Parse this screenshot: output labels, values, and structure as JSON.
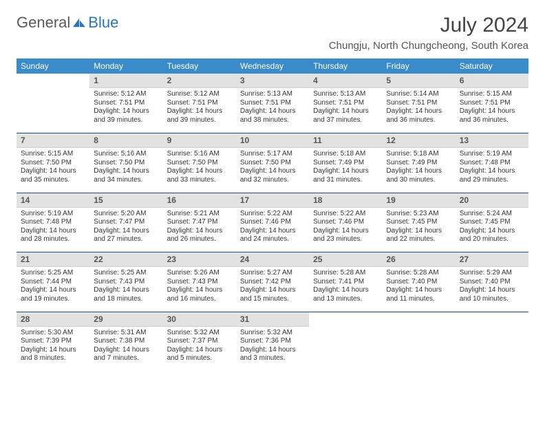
{
  "logo": {
    "general": "General",
    "blue": "Blue"
  },
  "title": "July 2024",
  "location": "Chungju, North Chungcheong, South Korea",
  "colors": {
    "header_bg": "#3a8bc9",
    "header_text": "#ffffff",
    "daynum_bg": "#e2e2e2",
    "separator": "#1a4d7a",
    "logo_gray": "#5a5a5a",
    "logo_blue": "#2876b8"
  },
  "weekdays": [
    "Sunday",
    "Monday",
    "Tuesday",
    "Wednesday",
    "Thursday",
    "Friday",
    "Saturday"
  ],
  "weeks": [
    [
      {
        "blank": true
      },
      {
        "num": "1",
        "sunrise": "Sunrise: 5:12 AM",
        "sunset": "Sunset: 7:51 PM",
        "daylight": "Daylight: 14 hours and 39 minutes."
      },
      {
        "num": "2",
        "sunrise": "Sunrise: 5:12 AM",
        "sunset": "Sunset: 7:51 PM",
        "daylight": "Daylight: 14 hours and 39 minutes."
      },
      {
        "num": "3",
        "sunrise": "Sunrise: 5:13 AM",
        "sunset": "Sunset: 7:51 PM",
        "daylight": "Daylight: 14 hours and 38 minutes."
      },
      {
        "num": "4",
        "sunrise": "Sunrise: 5:13 AM",
        "sunset": "Sunset: 7:51 PM",
        "daylight": "Daylight: 14 hours and 37 minutes."
      },
      {
        "num": "5",
        "sunrise": "Sunrise: 5:14 AM",
        "sunset": "Sunset: 7:51 PM",
        "daylight": "Daylight: 14 hours and 36 minutes."
      },
      {
        "num": "6",
        "sunrise": "Sunrise: 5:15 AM",
        "sunset": "Sunset: 7:51 PM",
        "daylight": "Daylight: 14 hours and 36 minutes."
      }
    ],
    [
      {
        "num": "7",
        "sunrise": "Sunrise: 5:15 AM",
        "sunset": "Sunset: 7:50 PM",
        "daylight": "Daylight: 14 hours and 35 minutes."
      },
      {
        "num": "8",
        "sunrise": "Sunrise: 5:16 AM",
        "sunset": "Sunset: 7:50 PM",
        "daylight": "Daylight: 14 hours and 34 minutes."
      },
      {
        "num": "9",
        "sunrise": "Sunrise: 5:16 AM",
        "sunset": "Sunset: 7:50 PM",
        "daylight": "Daylight: 14 hours and 33 minutes."
      },
      {
        "num": "10",
        "sunrise": "Sunrise: 5:17 AM",
        "sunset": "Sunset: 7:50 PM",
        "daylight": "Daylight: 14 hours and 32 minutes."
      },
      {
        "num": "11",
        "sunrise": "Sunrise: 5:18 AM",
        "sunset": "Sunset: 7:49 PM",
        "daylight": "Daylight: 14 hours and 31 minutes."
      },
      {
        "num": "12",
        "sunrise": "Sunrise: 5:18 AM",
        "sunset": "Sunset: 7:49 PM",
        "daylight": "Daylight: 14 hours and 30 minutes."
      },
      {
        "num": "13",
        "sunrise": "Sunrise: 5:19 AM",
        "sunset": "Sunset: 7:48 PM",
        "daylight": "Daylight: 14 hours and 29 minutes."
      }
    ],
    [
      {
        "num": "14",
        "sunrise": "Sunrise: 5:19 AM",
        "sunset": "Sunset: 7:48 PM",
        "daylight": "Daylight: 14 hours and 28 minutes."
      },
      {
        "num": "15",
        "sunrise": "Sunrise: 5:20 AM",
        "sunset": "Sunset: 7:47 PM",
        "daylight": "Daylight: 14 hours and 27 minutes."
      },
      {
        "num": "16",
        "sunrise": "Sunrise: 5:21 AM",
        "sunset": "Sunset: 7:47 PM",
        "daylight": "Daylight: 14 hours and 26 minutes."
      },
      {
        "num": "17",
        "sunrise": "Sunrise: 5:22 AM",
        "sunset": "Sunset: 7:46 PM",
        "daylight": "Daylight: 14 hours and 24 minutes."
      },
      {
        "num": "18",
        "sunrise": "Sunrise: 5:22 AM",
        "sunset": "Sunset: 7:46 PM",
        "daylight": "Daylight: 14 hours and 23 minutes."
      },
      {
        "num": "19",
        "sunrise": "Sunrise: 5:23 AM",
        "sunset": "Sunset: 7:45 PM",
        "daylight": "Daylight: 14 hours and 22 minutes."
      },
      {
        "num": "20",
        "sunrise": "Sunrise: 5:24 AM",
        "sunset": "Sunset: 7:45 PM",
        "daylight": "Daylight: 14 hours and 20 minutes."
      }
    ],
    [
      {
        "num": "21",
        "sunrise": "Sunrise: 5:25 AM",
        "sunset": "Sunset: 7:44 PM",
        "daylight": "Daylight: 14 hours and 19 minutes."
      },
      {
        "num": "22",
        "sunrise": "Sunrise: 5:25 AM",
        "sunset": "Sunset: 7:43 PM",
        "daylight": "Daylight: 14 hours and 18 minutes."
      },
      {
        "num": "23",
        "sunrise": "Sunrise: 5:26 AM",
        "sunset": "Sunset: 7:43 PM",
        "daylight": "Daylight: 14 hours and 16 minutes."
      },
      {
        "num": "24",
        "sunrise": "Sunrise: 5:27 AM",
        "sunset": "Sunset: 7:42 PM",
        "daylight": "Daylight: 14 hours and 15 minutes."
      },
      {
        "num": "25",
        "sunrise": "Sunrise: 5:28 AM",
        "sunset": "Sunset: 7:41 PM",
        "daylight": "Daylight: 14 hours and 13 minutes."
      },
      {
        "num": "26",
        "sunrise": "Sunrise: 5:28 AM",
        "sunset": "Sunset: 7:40 PM",
        "daylight": "Daylight: 14 hours and 11 minutes."
      },
      {
        "num": "27",
        "sunrise": "Sunrise: 5:29 AM",
        "sunset": "Sunset: 7:40 PM",
        "daylight": "Daylight: 14 hours and 10 minutes."
      }
    ],
    [
      {
        "num": "28",
        "sunrise": "Sunrise: 5:30 AM",
        "sunset": "Sunset: 7:39 PM",
        "daylight": "Daylight: 14 hours and 8 minutes."
      },
      {
        "num": "29",
        "sunrise": "Sunrise: 5:31 AM",
        "sunset": "Sunset: 7:38 PM",
        "daylight": "Daylight: 14 hours and 7 minutes."
      },
      {
        "num": "30",
        "sunrise": "Sunrise: 5:32 AM",
        "sunset": "Sunset: 7:37 PM",
        "daylight": "Daylight: 14 hours and 5 minutes."
      },
      {
        "num": "31",
        "sunrise": "Sunrise: 5:32 AM",
        "sunset": "Sunset: 7:36 PM",
        "daylight": "Daylight: 14 hours and 3 minutes."
      },
      {
        "blank": true
      },
      {
        "blank": true
      },
      {
        "blank": true
      }
    ]
  ]
}
